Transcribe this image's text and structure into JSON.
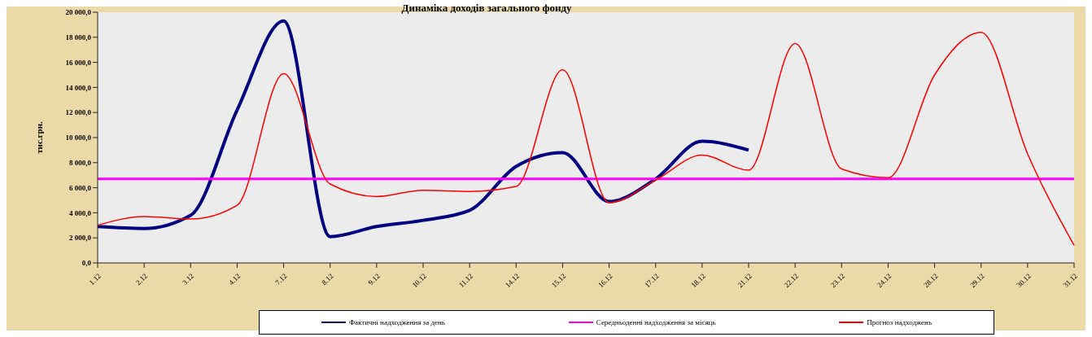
{
  "chart_data": {
    "type": "line",
    "title": "Динаміка доходів загального фонду",
    "ylabel": "тис.грн.",
    "categories": [
      "1.12",
      "2.12",
      "3.12",
      "4.12",
      "7.12",
      "8.12",
      "9.12",
      "10.12",
      "11.12",
      "14.12",
      "15.12",
      "16.12",
      "17.12",
      "18.12",
      "21.12",
      "22.12",
      "23.12",
      "24.12",
      "28.12",
      "29.12",
      "30.12",
      "31.12"
    ],
    "series": [
      {
        "name": "Фактичні надходження за день",
        "color": "#000080",
        "values": [
          2900,
          2750,
          3800,
          12200,
          19300,
          2100,
          2900,
          3400,
          4200,
          7700,
          8800,
          4900,
          6700,
          9700,
          9000,
          null,
          null,
          null,
          null,
          null,
          null,
          null
        ]
      },
      {
        "name": "Середньоденні надходження за місяць",
        "color": "#ff00ff",
        "values": [
          6700,
          6700,
          6700,
          6700,
          6700,
          6700,
          6700,
          6700,
          6700,
          6700,
          6700,
          6700,
          6700,
          6700,
          6700,
          6700,
          6700,
          6700,
          6700,
          6700,
          6700,
          6700
        ]
      },
      {
        "name": "Прогноз надходжень",
        "color": "#ff0000",
        "values": [
          3000,
          3700,
          3500,
          4600,
          15100,
          6300,
          5300,
          5800,
          5700,
          6100,
          15400,
          4800,
          6600,
          8600,
          7400,
          17500,
          7500,
          6800,
          15000,
          18400,
          8700,
          1400
        ]
      }
    ],
    "ylim": [
      0,
      20000
    ],
    "yticks": [
      {
        "value": 0,
        "label": "0,0"
      },
      {
        "value": 2000,
        "label": "2 000,0"
      },
      {
        "value": 4000,
        "label": "4 000,0"
      },
      {
        "value": 6000,
        "label": "6 000,0"
      },
      {
        "value": 8000,
        "label": "8 000,0"
      },
      {
        "value": 10000,
        "label": "10 000,0"
      },
      {
        "value": 12000,
        "label": "12 000,0"
      },
      {
        "value": 14000,
        "label": "14 000,0"
      },
      {
        "value": 16000,
        "label": "16 000,0"
      },
      {
        "value": 18000,
        "label": "18 000,0"
      },
      {
        "value": 20000,
        "label": "20 000,0"
      }
    ],
    "grid": false,
    "legend": "bottom",
    "marker": "none",
    "line_style": "solid"
  }
}
